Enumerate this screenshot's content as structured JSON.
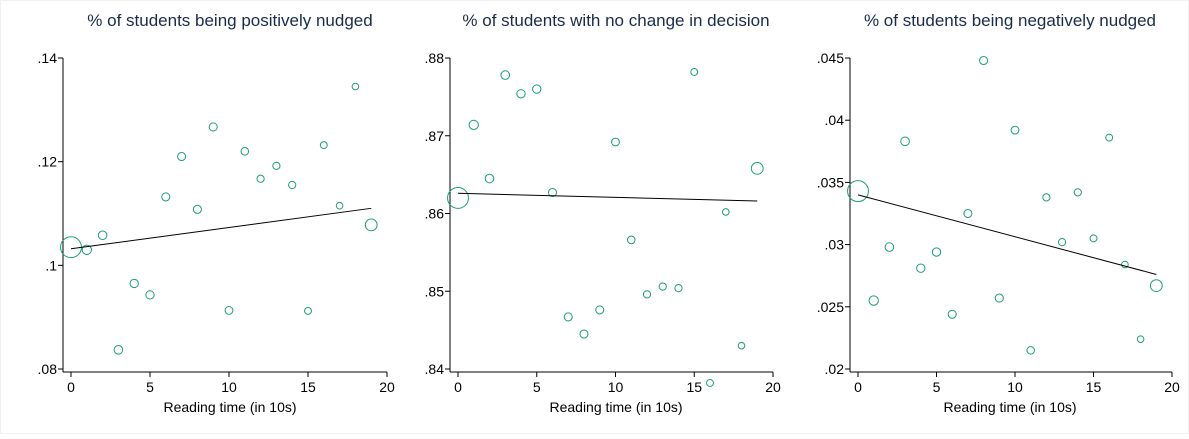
{
  "chart_data": [
    {
      "type": "scatter",
      "title": "% of students being positively nudged",
      "xlabel": "Reading time (in 10s)",
      "ylabel": "",
      "xlim": [
        0,
        20
      ],
      "ylim": [
        0.08,
        0.14
      ],
      "xticks": [
        0,
        5,
        10,
        15,
        20
      ],
      "xtick_labels": [
        "0",
        "5",
        "10",
        "15",
        "20"
      ],
      "yticks": [
        0.08,
        0.1,
        0.12,
        0.14
      ],
      "ytick_labels": [
        ".08",
        ".1",
        ".12",
        ".14"
      ],
      "grid": false,
      "marker_color": "#1a9e77",
      "fit_color": "#000000",
      "points": [
        {
          "x": 0,
          "y": 0.1035,
          "weight": 10
        },
        {
          "x": 1,
          "y": 0.103,
          "weight": 2
        },
        {
          "x": 2,
          "y": 0.1058,
          "weight": 1.7
        },
        {
          "x": 3,
          "y": 0.0837,
          "weight": 1.7
        },
        {
          "x": 4,
          "y": 0.0965,
          "weight": 1.6
        },
        {
          "x": 5,
          "y": 0.0943,
          "weight": 1.6
        },
        {
          "x": 6,
          "y": 0.1132,
          "weight": 1.5
        },
        {
          "x": 7,
          "y": 0.121,
          "weight": 1.5
        },
        {
          "x": 8,
          "y": 0.1108,
          "weight": 1.5
        },
        {
          "x": 9,
          "y": 0.1267,
          "weight": 1.5
        },
        {
          "x": 10,
          "y": 0.0913,
          "weight": 1.4
        },
        {
          "x": 11,
          "y": 0.122,
          "weight": 1.3
        },
        {
          "x": 12,
          "y": 0.1167,
          "weight": 1.2
        },
        {
          "x": 13,
          "y": 0.1192,
          "weight": 1.2
        },
        {
          "x": 14,
          "y": 0.1155,
          "weight": 1.2
        },
        {
          "x": 15,
          "y": 0.0912,
          "weight": 1.1
        },
        {
          "x": 16,
          "y": 0.1232,
          "weight": 1.1
        },
        {
          "x": 17,
          "y": 0.1115,
          "weight": 1
        },
        {
          "x": 18,
          "y": 0.1345,
          "weight": 1
        },
        {
          "x": 19,
          "y": 0.1078,
          "weight": 3.2
        }
      ],
      "fit_line": {
        "x": [
          0,
          19
        ],
        "y": [
          0.1032,
          0.111
        ]
      }
    },
    {
      "type": "scatter",
      "title": "% of students with no change in decision",
      "xlabel": "Reading time (in 10s)",
      "ylabel": "",
      "xlim": [
        0,
        20
      ],
      "ylim": [
        0.84,
        0.88
      ],
      "xticks": [
        0,
        5,
        10,
        15,
        20
      ],
      "xtick_labels": [
        "0",
        "5",
        "10",
        "15",
        "20"
      ],
      "yticks": [
        0.84,
        0.85,
        0.86,
        0.87,
        0.88
      ],
      "ytick_labels": [
        ".84",
        ".85",
        ".86",
        ".87",
        ".88"
      ],
      "grid": false,
      "marker_color": "#1a9e77",
      "fit_color": "#000000",
      "points": [
        {
          "x": 0,
          "y": 0.862,
          "weight": 10
        },
        {
          "x": 1,
          "y": 0.8714,
          "weight": 2
        },
        {
          "x": 2,
          "y": 0.8645,
          "weight": 1.7
        },
        {
          "x": 3,
          "y": 0.8778,
          "weight": 1.7
        },
        {
          "x": 4,
          "y": 0.8754,
          "weight": 1.6
        },
        {
          "x": 5,
          "y": 0.876,
          "weight": 1.6
        },
        {
          "x": 6,
          "y": 0.8627,
          "weight": 1.5
        },
        {
          "x": 7,
          "y": 0.8467,
          "weight": 1.5
        },
        {
          "x": 8,
          "y": 0.8445,
          "weight": 1.5
        },
        {
          "x": 9,
          "y": 0.8476,
          "weight": 1.5
        },
        {
          "x": 10,
          "y": 0.8692,
          "weight": 1.4
        },
        {
          "x": 11,
          "y": 0.8566,
          "weight": 1.3
        },
        {
          "x": 12,
          "y": 0.8496,
          "weight": 1.2
        },
        {
          "x": 13,
          "y": 0.8506,
          "weight": 1.2
        },
        {
          "x": 14,
          "y": 0.8504,
          "weight": 1.2
        },
        {
          "x": 15,
          "y": 0.8782,
          "weight": 1.1
        },
        {
          "x": 16,
          "y": 0.8382,
          "weight": 1.1
        },
        {
          "x": 17,
          "y": 0.8602,
          "weight": 1
        },
        {
          "x": 18,
          "y": 0.843,
          "weight": 1
        },
        {
          "x": 19,
          "y": 0.8658,
          "weight": 3.2
        }
      ],
      "fit_line": {
        "x": [
          0,
          19
        ],
        "y": [
          0.8626,
          0.8616
        ]
      }
    },
    {
      "type": "scatter",
      "title": "% of students being negatively nudged",
      "xlabel": "Reading time (in 10s)",
      "ylabel": "",
      "xlim": [
        0,
        20
      ],
      "ylim": [
        0.02,
        0.045
      ],
      "xticks": [
        0,
        5,
        10,
        15,
        20
      ],
      "xtick_labels": [
        "0",
        "5",
        "10",
        "15",
        "20"
      ],
      "yticks": [
        0.02,
        0.025,
        0.03,
        0.035,
        0.04,
        0.045
      ],
      "ytick_labels": [
        ".02",
        ".025",
        ".03",
        ".035",
        ".04",
        ".045"
      ],
      "grid": false,
      "marker_color": "#1a9e77",
      "fit_color": "#000000",
      "points": [
        {
          "x": 0,
          "y": 0.0343,
          "weight": 10
        },
        {
          "x": 1,
          "y": 0.0255,
          "weight": 2
        },
        {
          "x": 2,
          "y": 0.0298,
          "weight": 1.7
        },
        {
          "x": 3,
          "y": 0.0383,
          "weight": 1.7
        },
        {
          "x": 4,
          "y": 0.0281,
          "weight": 1.6
        },
        {
          "x": 5,
          "y": 0.0294,
          "weight": 1.6
        },
        {
          "x": 6,
          "y": 0.0244,
          "weight": 1.5
        },
        {
          "x": 7,
          "y": 0.0325,
          "weight": 1.5
        },
        {
          "x": 8,
          "y": 0.0448,
          "weight": 1.5
        },
        {
          "x": 9,
          "y": 0.0257,
          "weight": 1.5
        },
        {
          "x": 10,
          "y": 0.0392,
          "weight": 1.4
        },
        {
          "x": 11,
          "y": 0.0215,
          "weight": 1.3
        },
        {
          "x": 12,
          "y": 0.0338,
          "weight": 1.2
        },
        {
          "x": 13,
          "y": 0.0302,
          "weight": 1.2
        },
        {
          "x": 14,
          "y": 0.0342,
          "weight": 1.2
        },
        {
          "x": 15,
          "y": 0.0305,
          "weight": 1.1
        },
        {
          "x": 16,
          "y": 0.0386,
          "weight": 1.1
        },
        {
          "x": 17,
          "y": 0.0284,
          "weight": 1
        },
        {
          "x": 18,
          "y": 0.0224,
          "weight": 1
        },
        {
          "x": 19,
          "y": 0.0267,
          "weight": 3.2
        }
      ],
      "fit_line": {
        "x": [
          0,
          19
        ],
        "y": [
          0.034,
          0.0276
        ]
      }
    }
  ]
}
